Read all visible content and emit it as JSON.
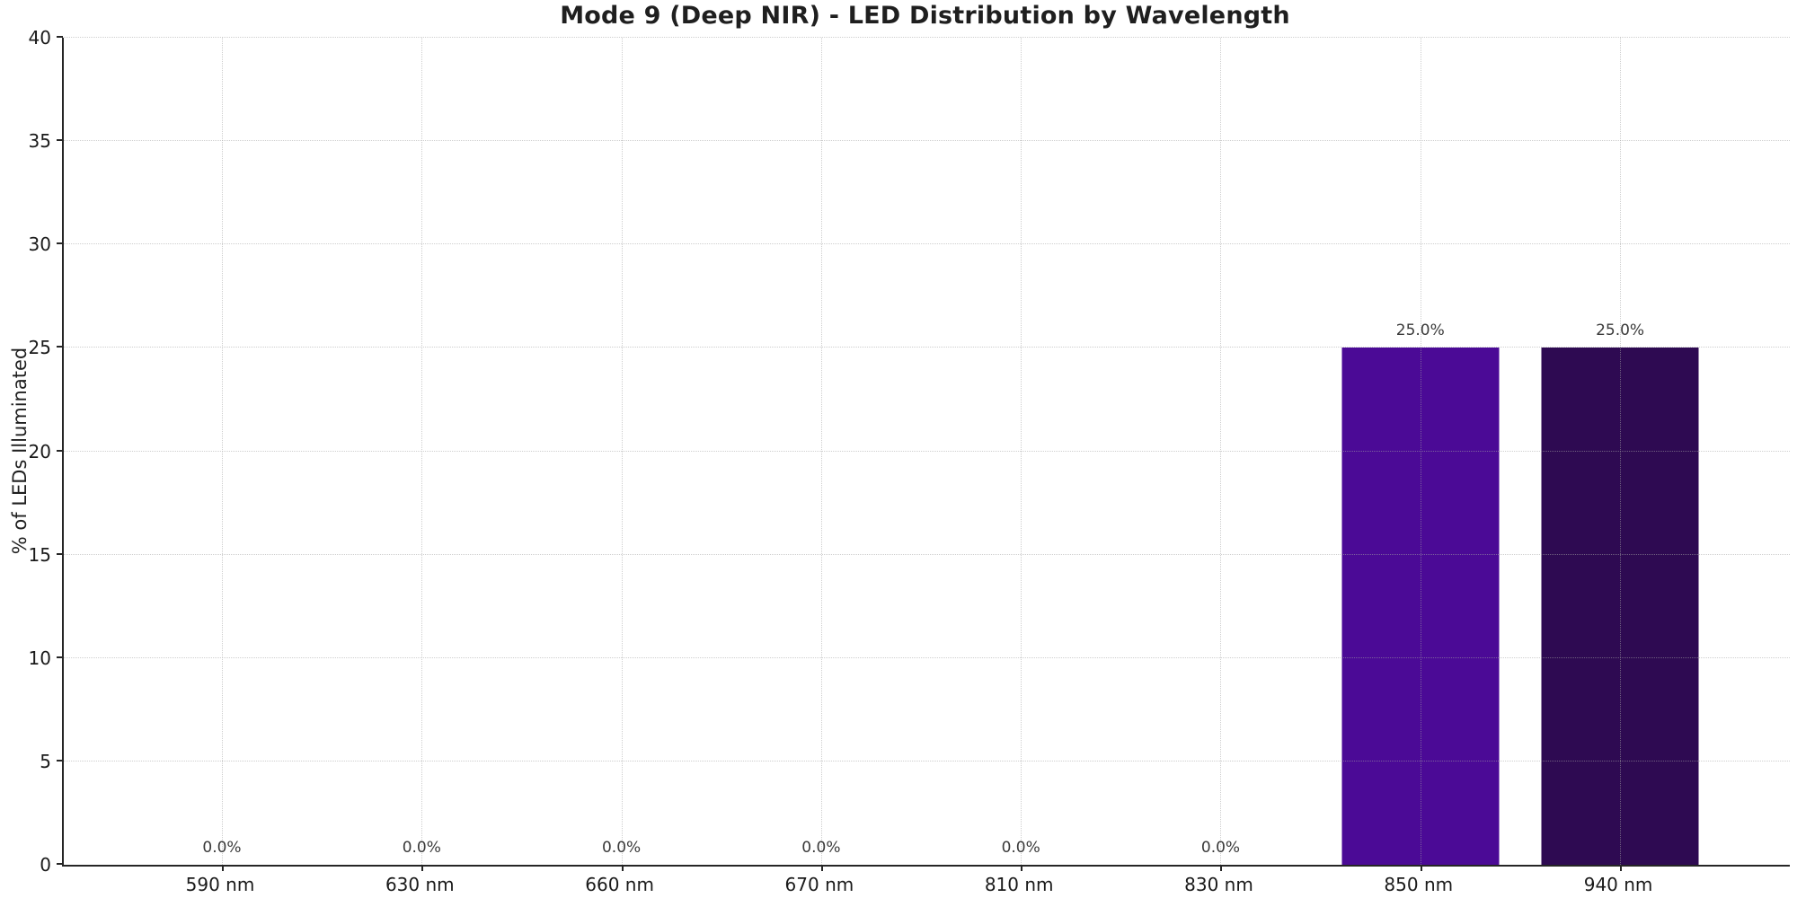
{
  "chart_data": {
    "type": "bar",
    "title": "Mode 9 (Deep NIR) - LED Distribution by Wavelength",
    "ylabel": "% of LEDs Illuminated",
    "xlabel": "",
    "categories": [
      "590 nm",
      "630 nm",
      "660 nm",
      "670 nm",
      "810 nm",
      "830 nm",
      "850 nm",
      "940 nm"
    ],
    "values": [
      0.0,
      0.0,
      0.0,
      0.0,
      0.0,
      0.0,
      25.0,
      25.0
    ],
    "bar_value_labels": [
      "0.0%",
      "0.0%",
      "0.0%",
      "0.0%",
      "0.0%",
      "0.0%",
      "25.0%",
      "25.0%"
    ],
    "bar_colors": [
      null,
      null,
      null,
      null,
      null,
      null,
      "#4b0a96",
      "#2e0a52"
    ],
    "ylim": [
      0,
      40
    ],
    "yticks": [
      0,
      5,
      10,
      15,
      20,
      25,
      30,
      35,
      40
    ],
    "grid": {
      "style": "dotted",
      "horizontal": true,
      "vertical": true
    },
    "legend": "none"
  },
  "style": {
    "background": "#ffffff",
    "axis_color": "#262626",
    "grid_color": "#a5a5a5",
    "text_color": "#1a1a1a",
    "value_label_color": "#3a3a3a",
    "bar_850_color": "#4b0a96",
    "bar_940_color": "#2e0a52"
  }
}
